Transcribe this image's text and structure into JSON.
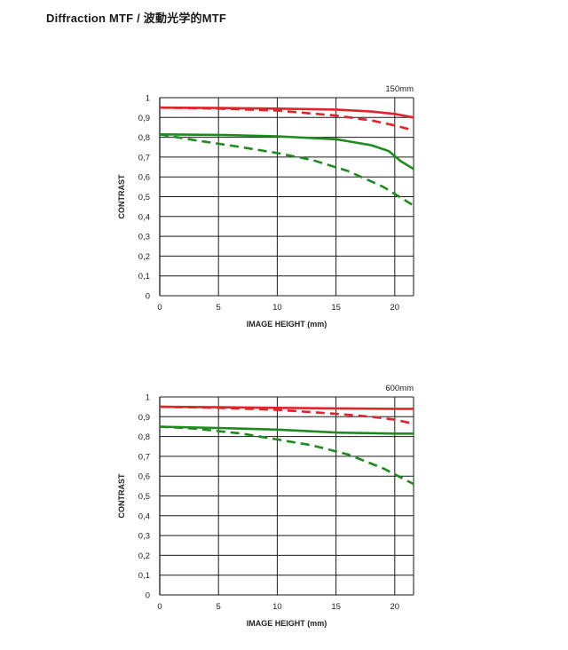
{
  "page": {
    "title": "Diffraction MTF / 波動光学的MTF"
  },
  "colors": {
    "red": "#e0242b",
    "green": "#1f8a1f",
    "grid": "#1a1a1a"
  },
  "chart_data": [
    {
      "type": "line",
      "label": "150mm",
      "xlabel": "IMAGE HEIGHT (mm)",
      "ylabel": "CONTRAST",
      "xlim": [
        0,
        21.6
      ],
      "ylim": [
        0,
        1
      ],
      "xticks": [
        0,
        5,
        10,
        15,
        20
      ],
      "xtick_labels": [
        "0",
        "5",
        "10",
        "15",
        "20"
      ],
      "yticks": [
        0,
        0.1,
        0.2,
        0.3,
        0.4,
        0.5,
        0.6,
        0.7,
        0.8,
        0.9,
        1
      ],
      "ytick_labels": [
        "0",
        "0,1",
        "0,2",
        "0,3",
        "0,4",
        "0,5",
        "0,6",
        "0,7",
        "0,8",
        "0,9",
        "1"
      ],
      "grid": true,
      "series": [
        {
          "color": "red",
          "style": "solid",
          "x": [
            0,
            5,
            10,
            15,
            18,
            20,
            21.6
          ],
          "y": [
            0.95,
            0.948,
            0.945,
            0.94,
            0.93,
            0.918,
            0.9
          ]
        },
        {
          "color": "red",
          "style": "dashed",
          "x": [
            0,
            5,
            10,
            15,
            18,
            20,
            21.6
          ],
          "y": [
            0.95,
            0.945,
            0.935,
            0.91,
            0.885,
            0.86,
            0.835
          ]
        },
        {
          "color": "green",
          "style": "solid",
          "x": [
            0,
            5,
            10,
            15,
            18,
            19.5,
            20.5,
            21.6
          ],
          "y": [
            0.815,
            0.812,
            0.805,
            0.79,
            0.76,
            0.73,
            0.68,
            0.64
          ]
        },
        {
          "color": "green",
          "style": "dashed",
          "x": [
            0,
            3,
            7,
            10,
            13,
            16,
            19,
            21.6
          ],
          "y": [
            0.815,
            0.785,
            0.75,
            0.72,
            0.685,
            0.63,
            0.55,
            0.455
          ]
        }
      ]
    },
    {
      "type": "line",
      "label": "600mm",
      "xlabel": "IMAGE HEIGHT (mm)",
      "ylabel": "CONTRAST",
      "xlim": [
        0,
        21.6
      ],
      "ylim": [
        0,
        1
      ],
      "xticks": [
        0,
        5,
        10,
        15,
        20
      ],
      "xtick_labels": [
        "0",
        "5",
        "10",
        "15",
        "20"
      ],
      "yticks": [
        0,
        0.1,
        0.2,
        0.3,
        0.4,
        0.5,
        0.6,
        0.7,
        0.8,
        0.9,
        1
      ],
      "ytick_labels": [
        "0",
        "0,1",
        "0,2",
        "0,3",
        "0,4",
        "0,5",
        "0,6",
        "0,7",
        "0,8",
        "0,9",
        "1"
      ],
      "grid": true,
      "series": [
        {
          "color": "red",
          "style": "solid",
          "x": [
            0,
            5,
            10,
            15,
            20,
            21.6
          ],
          "y": [
            0.95,
            0.948,
            0.945,
            0.942,
            0.94,
            0.94
          ]
        },
        {
          "color": "red",
          "style": "dashed",
          "x": [
            0,
            5,
            10,
            15,
            18,
            20,
            21.6
          ],
          "y": [
            0.95,
            0.945,
            0.935,
            0.915,
            0.9,
            0.885,
            0.865
          ]
        },
        {
          "color": "green",
          "style": "solid",
          "x": [
            0,
            5,
            10,
            15,
            20,
            21.6
          ],
          "y": [
            0.85,
            0.843,
            0.835,
            0.82,
            0.815,
            0.815
          ]
        },
        {
          "color": "green",
          "style": "dashed",
          "x": [
            0,
            3,
            7,
            10,
            13,
            16,
            19,
            21.6
          ],
          "y": [
            0.85,
            0.84,
            0.815,
            0.785,
            0.755,
            0.71,
            0.64,
            0.56
          ]
        }
      ]
    }
  ]
}
